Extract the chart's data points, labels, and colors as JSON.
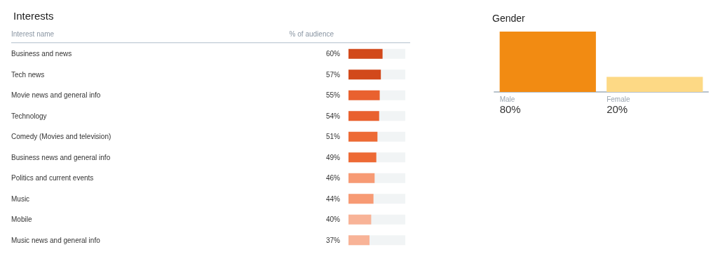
{
  "chart_data": [
    {
      "type": "bar",
      "orientation": "horizontal",
      "title": "Interests",
      "ylabel": "Interest name",
      "xlabel": "% of audience",
      "categories": [
        "Business and news",
        "Tech news",
        "Movie news and general info",
        "Technology",
        "Comedy (Movies and television)",
        "Business news and general info",
        "Politics and current events",
        "Music",
        "Mobile",
        "Music news and general info"
      ],
      "values": [
        60,
        57,
        55,
        54,
        51,
        49,
        46,
        44,
        40,
        37
      ],
      "colors": [
        "#d2491b",
        "#d2491b",
        "#e9612f",
        "#e9612f",
        "#ed6a35",
        "#ed6a35",
        "#f79a74",
        "#f79a74",
        "#f8b397",
        "#f8b397"
      ],
      "value_labels": [
        "60%",
        "57%",
        "55%",
        "54%",
        "51%",
        "49%",
        "46%",
        "44%",
        "40%",
        "37%"
      ],
      "xlim": [
        0,
        100
      ],
      "tick_labels": "y"
    },
    {
      "type": "bar",
      "title": "Gender",
      "categories": [
        "Male",
        "Female"
      ],
      "values": [
        80,
        20
      ],
      "colors": [
        "#f28b12",
        "#fdd985"
      ],
      "value_labels": [
        "80%",
        "20%"
      ],
      "tick_labels": false
    }
  ]
}
